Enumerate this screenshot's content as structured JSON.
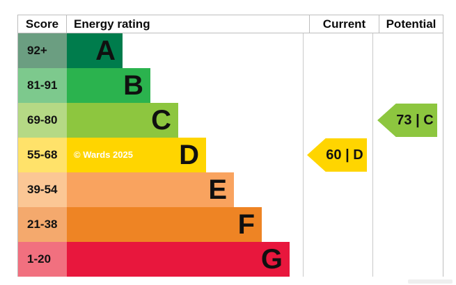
{
  "header": {
    "score": "Score",
    "energy_rating": "Energy rating",
    "current": "Current",
    "potential": "Potential"
  },
  "bands": [
    {
      "letter": "A",
      "score_range": "92+",
      "bar_color": "#007c4c",
      "score_cell_color": "#6b9e81"
    },
    {
      "letter": "B",
      "score_range": "81-91",
      "bar_color": "#2bb34e",
      "score_cell_color": "#7dc98d"
    },
    {
      "letter": "C",
      "score_range": "69-80",
      "bar_color": "#8dc63f",
      "score_cell_color": "#b5d985"
    },
    {
      "letter": "D",
      "score_range": "55-68",
      "bar_color": "#ffd500",
      "score_cell_color": "#ffe26a"
    },
    {
      "letter": "E",
      "score_range": "39-54",
      "bar_color": "#f9a35f",
      "score_cell_color": "#fbc795"
    },
    {
      "letter": "F",
      "score_range": "21-38",
      "bar_color": "#ee8424",
      "score_cell_color": "#f4a96d"
    },
    {
      "letter": "G",
      "score_range": "1-20",
      "bar_color": "#e8173d",
      "score_cell_color": "#f1707f"
    }
  ],
  "ratings": {
    "current": {
      "label": "60 | D",
      "value": 60,
      "band": "D",
      "band_index": 3,
      "color": "#ffd500"
    },
    "potential": {
      "label": "73 | C",
      "value": 73,
      "band": "C",
      "band_index": 2,
      "color": "#8dc63f"
    }
  },
  "watermark": "© Wards 2025",
  "colors": {
    "border": "#bdbdbd"
  },
  "chart_data": {
    "type": "bar",
    "title": "Energy rating",
    "columns": [
      "Score",
      "Energy rating",
      "Current",
      "Potential"
    ],
    "categories": [
      "A",
      "B",
      "C",
      "D",
      "E",
      "F",
      "G"
    ],
    "score_ranges": [
      "92+",
      "81-91",
      "69-80",
      "55-68",
      "39-54",
      "21-38",
      "1-20"
    ],
    "band_colors": [
      "#007c4c",
      "#2bb34e",
      "#8dc63f",
      "#ffd500",
      "#f9a35f",
      "#ee8424",
      "#e8173d"
    ],
    "bar_relative_lengths": [
      1,
      2,
      3,
      4,
      5,
      6,
      7
    ],
    "current": {
      "value": 60,
      "band": "D"
    },
    "potential": {
      "value": 73,
      "band": "C"
    },
    "legend_position": "none",
    "grid": false
  }
}
